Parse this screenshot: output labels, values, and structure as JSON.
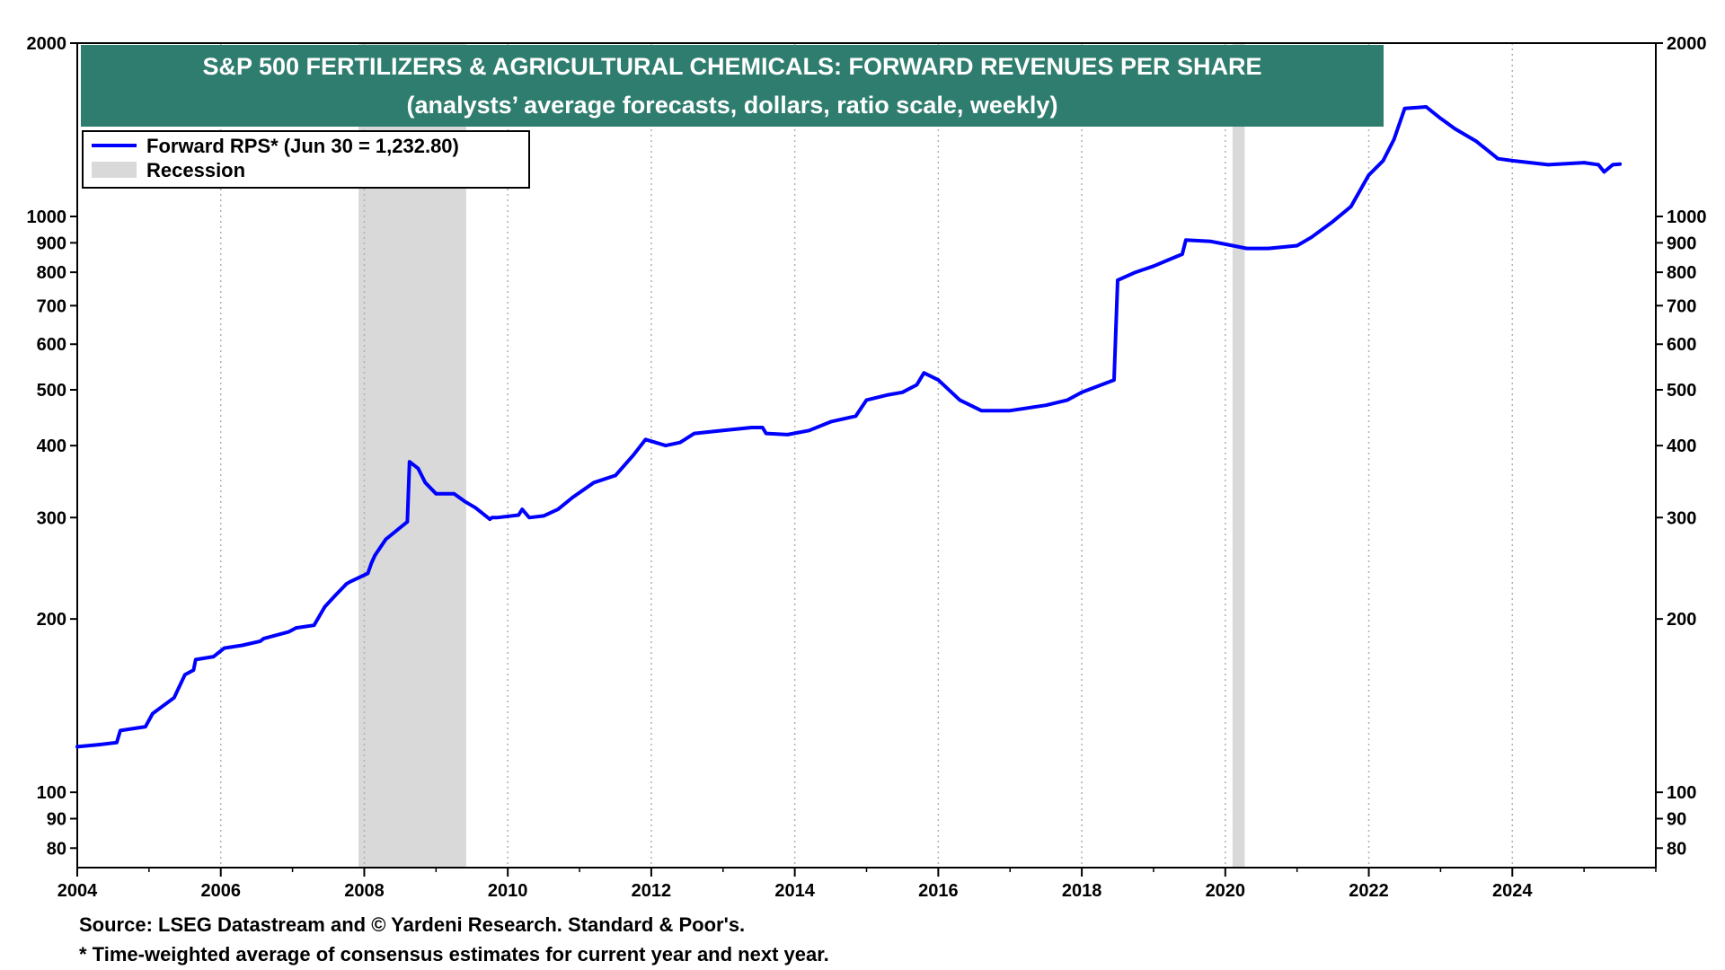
{
  "chart_data": {
    "type": "line",
    "title": "S&P 500 FERTILIZERS & AGRICULTURAL CHEMICALS: FORWARD REVENUES PER SHARE",
    "subtitle": "(analysts’ average forecasts, dollars, ratio scale, weekly)",
    "scale": "log",
    "xlim": [
      2004,
      2026.0
    ],
    "ylim": [
      74,
      2000
    ],
    "x_ticks": [
      2004,
      2006,
      2008,
      2010,
      2012,
      2014,
      2016,
      2018,
      2020,
      2022,
      2024
    ],
    "x_tick_labels": [
      "2004",
      "2006",
      "2008",
      "2010",
      "2012",
      "2014",
      "2016",
      "2018",
      "2020",
      "2022",
      "2024"
    ],
    "y_ticks": [
      80,
      90,
      100,
      200,
      300,
      400,
      500,
      600,
      700,
      800,
      900,
      1000,
      2000
    ],
    "y_tick_labels": [
      "80",
      "90",
      "100",
      "200",
      "300",
      "400",
      "500",
      "600",
      "700",
      "800",
      "900",
      "1000",
      "2000"
    ],
    "grid": "dotted vertical at x ticks",
    "legend": [
      {
        "label": "Forward RPS* (Jun 30 = 1,232.80)",
        "type": "line",
        "color": "#0000ff"
      },
      {
        "label": "Recession",
        "type": "band",
        "color": "#d9d9d9"
      }
    ],
    "recessions": [
      [
        2007.92,
        2009.42
      ],
      [
        2020.1,
        2020.27
      ]
    ],
    "series": [
      {
        "name": "Forward RPS*",
        "color": "#0000ff",
        "x": [
          2004.0,
          2004.3,
          2004.55,
          2004.6,
          2004.95,
          2005.05,
          2005.35,
          2005.5,
          2005.62,
          2005.65,
          2005.9,
          2006.05,
          2006.3,
          2006.55,
          2006.6,
          2006.95,
          2007.05,
          2007.3,
          2007.45,
          2007.6,
          2007.75,
          2007.8,
          2008.05,
          2008.1,
          2008.15,
          2008.3,
          2008.6,
          2008.63,
          2008.75,
          2008.85,
          2009.0,
          2009.25,
          2009.4,
          2009.55,
          2009.75,
          2009.78,
          2009.85,
          2010.15,
          2010.2,
          2010.3,
          2010.5,
          2010.7,
          2010.9,
          2011.2,
          2011.5,
          2011.75,
          2011.92,
          2012.2,
          2012.4,
          2012.6,
          2013.0,
          2013.4,
          2013.55,
          2013.6,
          2013.9,
          2014.2,
          2014.5,
          2014.85,
          2015.0,
          2015.3,
          2015.5,
          2015.7,
          2015.8,
          2016.0,
          2016.3,
          2016.6,
          2017.0,
          2017.5,
          2017.8,
          2018.0,
          2018.45,
          2018.5,
          2018.75,
          2019.0,
          2019.2,
          2019.4,
          2019.45,
          2019.8,
          2020.0,
          2020.3,
          2020.6,
          2021.0,
          2021.2,
          2021.5,
          2021.75,
          2022.0,
          2022.2,
          2022.35,
          2022.5,
          2022.8,
          2023.0,
          2023.2,
          2023.5,
          2023.8,
          2024.0,
          2024.5,
          2025.0,
          2025.2,
          2025.28,
          2025.4,
          2025.5
        ],
        "y": [
          120,
          121,
          122,
          128,
          130,
          137,
          146,
          160,
          163,
          170,
          172,
          178,
          180,
          183,
          185,
          190,
          193,
          195,
          210,
          220,
          230,
          232,
          240,
          250,
          258,
          275,
          295,
          375,
          365,
          345,
          330,
          330,
          320,
          312,
          298,
          300,
          300,
          303,
          310,
          300,
          302,
          310,
          325,
          345,
          355,
          385,
          410,
          400,
          405,
          420,
          425,
          430,
          430,
          420,
          418,
          425,
          440,
          450,
          480,
          490,
          495,
          510,
          535,
          520,
          480,
          460,
          460,
          470,
          480,
          495,
          520,
          775,
          800,
          820,
          840,
          860,
          910,
          905,
          895,
          880,
          880,
          890,
          920,
          980,
          1040,
          1180,
          1250,
          1360,
          1540,
          1550,
          1480,
          1420,
          1350,
          1260,
          1250,
          1230,
          1240,
          1230,
          1195,
          1230,
          1233
        ]
      }
    ]
  },
  "footnotes": {
    "source": "Source: LSEG Datastream and © Yardeni Research. Standard & Poor's.",
    "note": "* Time-weighted average of consensus estimates for current year and next year."
  },
  "colors": {
    "title_bg": "#2e7d6e",
    "line": "#0000ff",
    "recession": "#d9d9d9"
  }
}
